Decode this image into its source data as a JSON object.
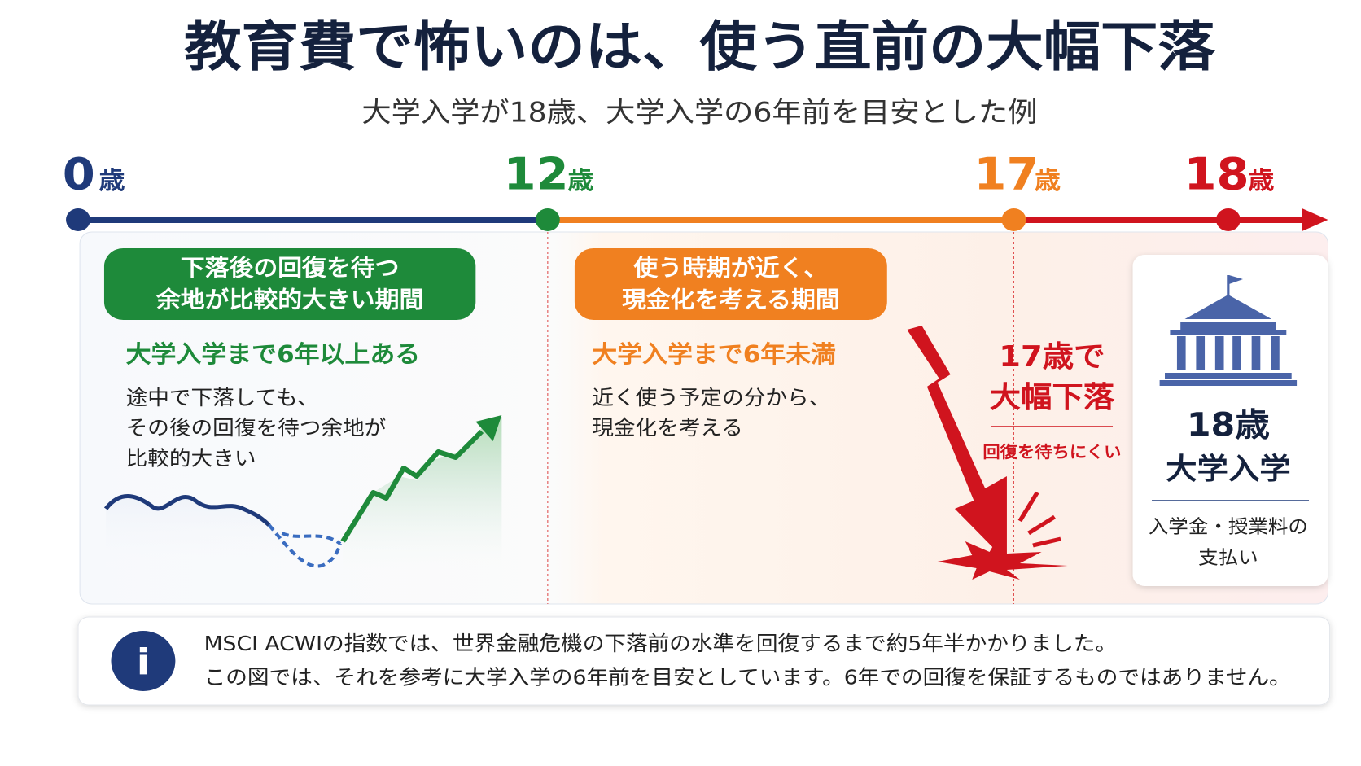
{
  "title": "教育費で怖いのは、使う直前の大幅下落",
  "subtitle": "大学入学が18歳、大学入学の6年前を目安とした例",
  "timeline": [
    {
      "age": "0",
      "unit": "歳"
    },
    {
      "age": "12",
      "unit": "歳"
    },
    {
      "age": "17",
      "unit": "歳"
    },
    {
      "age": "18",
      "unit": "歳"
    }
  ],
  "phases": [
    {
      "badge": [
        "下落後の回復を待つ",
        "余地が比較的大きい期間"
      ],
      "heading": "大学入学まで6年以上ある",
      "body": [
        "途中で下落しても、",
        "その後の回復を待つ余地が",
        "比較的大きい"
      ]
    },
    {
      "badge": [
        "使う時期が近く、",
        "現金化を考える期間"
      ],
      "heading": "大学入学まで6年未満",
      "body": [
        "近く使う予定の分から、",
        "現金化を考える"
      ]
    }
  ],
  "drop": {
    "heading": [
      "17歳で",
      "大幅下落"
    ],
    "note": "回復を待ちにくい"
  },
  "entrance": {
    "heading": [
      "18歳",
      "大学入学"
    ],
    "body": [
      "入学金・授業料の",
      "支払い"
    ]
  },
  "info": [
    "MSCI ACWIの指数では、世界金融危機の下落前の水準を回復するまで約5年半かかりました。",
    "この図では、それを参考に大学入学の6年前を目安としています。6年での回復を保証するものではありません。"
  ]
}
